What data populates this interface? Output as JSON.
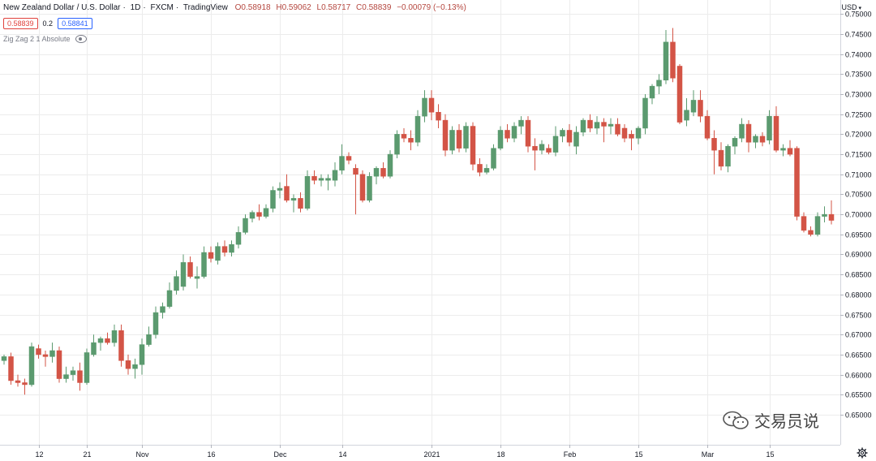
{
  "header": {
    "symbol": "New Zealand Dollar / U.S. Dollar",
    "interval": "1D",
    "exchange": "FXCM",
    "source": "TradingView",
    "open": "O0.58918",
    "high": "H0.59062",
    "low": "L0.58717",
    "close": "C0.58839",
    "change": "−0.00079 (−0.13%)"
  },
  "prices": {
    "sell": "0.58839",
    "spread": "0.2",
    "buy": "0.58841"
  },
  "indicator": {
    "label": "Zig Zag 2 1 Absolute",
    "eye_icon": "eye-icon"
  },
  "currency": "USD",
  "watermark": "交易员说",
  "colors": {
    "up": "#5b9a6f",
    "down": "#d35446",
    "grid": "#ececec",
    "axis_text": "#131722"
  },
  "chart_data": {
    "type": "candlestick",
    "ylim": [
      0.6425,
      0.7535
    ],
    "y_ticks": [
      "0.75000",
      "0.74500",
      "0.74000",
      "0.73500",
      "0.73000",
      "0.72500",
      "0.72000",
      "0.71500",
      "0.71000",
      "0.70500",
      "0.70000",
      "0.69500",
      "0.69000",
      "0.68500",
      "0.68000",
      "0.67500",
      "0.67000",
      "0.66500",
      "0.66000",
      "0.65500",
      "0.65000"
    ],
    "x_ticks": [
      {
        "label": "12",
        "index": 5
      },
      {
        "label": "21",
        "index": 12
      },
      {
        "label": "Nov",
        "index": 20
      },
      {
        "label": "16",
        "index": 30
      },
      {
        "label": "Dec",
        "index": 40
      },
      {
        "label": "14",
        "index": 49
      },
      {
        "label": "2021",
        "index": 62
      },
      {
        "label": "18",
        "index": 72
      },
      {
        "label": "Feb",
        "index": 82
      },
      {
        "label": "15",
        "index": 92
      },
      {
        "label": "Mar",
        "index": 102
      },
      {
        "label": "15",
        "index": 111
      }
    ],
    "candles": [
      {
        "o": 0.6635,
        "h": 0.665,
        "l": 0.6625,
        "c": 0.6645
      },
      {
        "o": 0.6645,
        "h": 0.6655,
        "l": 0.6575,
        "c": 0.6585
      },
      {
        "o": 0.6585,
        "h": 0.66,
        "l": 0.657,
        "c": 0.658
      },
      {
        "o": 0.658,
        "h": 0.659,
        "l": 0.655,
        "c": 0.6575
      },
      {
        "o": 0.6575,
        "h": 0.668,
        "l": 0.657,
        "c": 0.667
      },
      {
        "o": 0.6665,
        "h": 0.6675,
        "l": 0.664,
        "c": 0.665
      },
      {
        "o": 0.665,
        "h": 0.666,
        "l": 0.662,
        "c": 0.6645
      },
      {
        "o": 0.6645,
        "h": 0.668,
        "l": 0.663,
        "c": 0.666
      },
      {
        "o": 0.666,
        "h": 0.667,
        "l": 0.658,
        "c": 0.659
      },
      {
        "o": 0.659,
        "h": 0.662,
        "l": 0.658,
        "c": 0.66
      },
      {
        "o": 0.66,
        "h": 0.662,
        "l": 0.6585,
        "c": 0.661
      },
      {
        "o": 0.661,
        "h": 0.663,
        "l": 0.656,
        "c": 0.658
      },
      {
        "o": 0.658,
        "h": 0.6665,
        "l": 0.6575,
        "c": 0.6655
      },
      {
        "o": 0.665,
        "h": 0.67,
        "l": 0.6645,
        "c": 0.668
      },
      {
        "o": 0.668,
        "h": 0.6695,
        "l": 0.666,
        "c": 0.669
      },
      {
        "o": 0.669,
        "h": 0.6705,
        "l": 0.6675,
        "c": 0.668
      },
      {
        "o": 0.668,
        "h": 0.6725,
        "l": 0.667,
        "c": 0.671
      },
      {
        "o": 0.671,
        "h": 0.6725,
        "l": 0.662,
        "c": 0.6635
      },
      {
        "o": 0.6635,
        "h": 0.665,
        "l": 0.66,
        "c": 0.6615
      },
      {
        "o": 0.6615,
        "h": 0.664,
        "l": 0.659,
        "c": 0.6625
      },
      {
        "o": 0.6625,
        "h": 0.669,
        "l": 0.66,
        "c": 0.6675
      },
      {
        "o": 0.6675,
        "h": 0.672,
        "l": 0.667,
        "c": 0.67
      },
      {
        "o": 0.67,
        "h": 0.677,
        "l": 0.669,
        "c": 0.6755
      },
      {
        "o": 0.6755,
        "h": 0.678,
        "l": 0.674,
        "c": 0.677
      },
      {
        "o": 0.677,
        "h": 0.683,
        "l": 0.6765,
        "c": 0.681
      },
      {
        "o": 0.681,
        "h": 0.686,
        "l": 0.68,
        "c": 0.6845
      },
      {
        "o": 0.682,
        "h": 0.69,
        "l": 0.681,
        "c": 0.688
      },
      {
        "o": 0.688,
        "h": 0.6895,
        "l": 0.684,
        "c": 0.6845
      },
      {
        "o": 0.684,
        "h": 0.687,
        "l": 0.6815,
        "c": 0.6845
      },
      {
        "o": 0.6845,
        "h": 0.692,
        "l": 0.684,
        "c": 0.6905
      },
      {
        "o": 0.6905,
        "h": 0.692,
        "l": 0.688,
        "c": 0.689
      },
      {
        "o": 0.6885,
        "h": 0.693,
        "l": 0.6875,
        "c": 0.692
      },
      {
        "o": 0.692,
        "h": 0.6935,
        "l": 0.6895,
        "c": 0.6905
      },
      {
        "o": 0.6905,
        "h": 0.6935,
        "l": 0.6895,
        "c": 0.6925
      },
      {
        "o": 0.6925,
        "h": 0.697,
        "l": 0.6915,
        "c": 0.6955
      },
      {
        "o": 0.6955,
        "h": 0.7,
        "l": 0.695,
        "c": 0.699
      },
      {
        "o": 0.699,
        "h": 0.701,
        "l": 0.698,
        "c": 0.7005
      },
      {
        "o": 0.7005,
        "h": 0.7025,
        "l": 0.6985,
        "c": 0.6995
      },
      {
        "o": 0.6995,
        "h": 0.7025,
        "l": 0.699,
        "c": 0.7015
      },
      {
        "o": 0.7015,
        "h": 0.707,
        "l": 0.7005,
        "c": 0.706
      },
      {
        "o": 0.706,
        "h": 0.708,
        "l": 0.704,
        "c": 0.7065
      },
      {
        "o": 0.707,
        "h": 0.71,
        "l": 0.703,
        "c": 0.7035
      },
      {
        "o": 0.7035,
        "h": 0.705,
        "l": 0.7005,
        "c": 0.704
      },
      {
        "o": 0.704,
        "h": 0.7055,
        "l": 0.7005,
        "c": 0.7015
      },
      {
        "o": 0.7015,
        "h": 0.711,
        "l": 0.701,
        "c": 0.7095
      },
      {
        "o": 0.7095,
        "h": 0.711,
        "l": 0.7075,
        "c": 0.7085
      },
      {
        "o": 0.7085,
        "h": 0.71,
        "l": 0.707,
        "c": 0.709
      },
      {
        "o": 0.7085,
        "h": 0.71,
        "l": 0.706,
        "c": 0.709
      },
      {
        "o": 0.7085,
        "h": 0.713,
        "l": 0.707,
        "c": 0.711
      },
      {
        "o": 0.711,
        "h": 0.7175,
        "l": 0.71,
        "c": 0.7145
      },
      {
        "o": 0.7145,
        "h": 0.7155,
        "l": 0.7125,
        "c": 0.7135
      },
      {
        "o": 0.7115,
        "h": 0.7125,
        "l": 0.7,
        "c": 0.71
      },
      {
        "o": 0.71,
        "h": 0.711,
        "l": 0.703,
        "c": 0.7035
      },
      {
        "o": 0.7035,
        "h": 0.7105,
        "l": 0.703,
        "c": 0.7095
      },
      {
        "o": 0.7095,
        "h": 0.712,
        "l": 0.7075,
        "c": 0.7115
      },
      {
        "o": 0.7115,
        "h": 0.713,
        "l": 0.709,
        "c": 0.7095
      },
      {
        "o": 0.7095,
        "h": 0.716,
        "l": 0.709,
        "c": 0.715
      },
      {
        "o": 0.715,
        "h": 0.721,
        "l": 0.714,
        "c": 0.72
      },
      {
        "o": 0.72,
        "h": 0.7215,
        "l": 0.718,
        "c": 0.719
      },
      {
        "o": 0.719,
        "h": 0.721,
        "l": 0.716,
        "c": 0.718
      },
      {
        "o": 0.718,
        "h": 0.726,
        "l": 0.717,
        "c": 0.7245
      },
      {
        "o": 0.7245,
        "h": 0.731,
        "l": 0.723,
        "c": 0.729
      },
      {
        "o": 0.729,
        "h": 0.731,
        "l": 0.7235,
        "c": 0.7255
      },
      {
        "o": 0.7255,
        "h": 0.7275,
        "l": 0.7215,
        "c": 0.7235
      },
      {
        "o": 0.7235,
        "h": 0.725,
        "l": 0.7145,
        "c": 0.716
      },
      {
        "o": 0.716,
        "h": 0.722,
        "l": 0.715,
        "c": 0.721
      },
      {
        "o": 0.721,
        "h": 0.7225,
        "l": 0.7155,
        "c": 0.7165
      },
      {
        "o": 0.7165,
        "h": 0.723,
        "l": 0.7155,
        "c": 0.722
      },
      {
        "o": 0.722,
        "h": 0.723,
        "l": 0.711,
        "c": 0.7125
      },
      {
        "o": 0.7125,
        "h": 0.714,
        "l": 0.7095,
        "c": 0.7105
      },
      {
        "o": 0.7105,
        "h": 0.7125,
        "l": 0.71,
        "c": 0.7115
      },
      {
        "o": 0.7115,
        "h": 0.7175,
        "l": 0.711,
        "c": 0.7165
      },
      {
        "o": 0.7165,
        "h": 0.722,
        "l": 0.716,
        "c": 0.721
      },
      {
        "o": 0.721,
        "h": 0.7225,
        "l": 0.718,
        "c": 0.719
      },
      {
        "o": 0.719,
        "h": 0.723,
        "l": 0.718,
        "c": 0.722
      },
      {
        "o": 0.722,
        "h": 0.7245,
        "l": 0.72,
        "c": 0.7235
      },
      {
        "o": 0.7235,
        "h": 0.7245,
        "l": 0.7155,
        "c": 0.717
      },
      {
        "o": 0.717,
        "h": 0.719,
        "l": 0.711,
        "c": 0.716
      },
      {
        "o": 0.716,
        "h": 0.7185,
        "l": 0.715,
        "c": 0.7175
      },
      {
        "o": 0.7165,
        "h": 0.7175,
        "l": 0.715,
        "c": 0.7155
      },
      {
        "o": 0.7155,
        "h": 0.722,
        "l": 0.7145,
        "c": 0.7195
      },
      {
        "o": 0.7195,
        "h": 0.7215,
        "l": 0.718,
        "c": 0.721
      },
      {
        "o": 0.721,
        "h": 0.7225,
        "l": 0.717,
        "c": 0.718
      },
      {
        "o": 0.717,
        "h": 0.722,
        "l": 0.715,
        "c": 0.7205
      },
      {
        "o": 0.7205,
        "h": 0.724,
        "l": 0.7195,
        "c": 0.7235
      },
      {
        "o": 0.7235,
        "h": 0.725,
        "l": 0.7205,
        "c": 0.7215
      },
      {
        "o": 0.7215,
        "h": 0.7245,
        "l": 0.72,
        "c": 0.723
      },
      {
        "o": 0.723,
        "h": 0.724,
        "l": 0.718,
        "c": 0.722
      },
      {
        "o": 0.722,
        "h": 0.724,
        "l": 0.72,
        "c": 0.7225
      },
      {
        "o": 0.7225,
        "h": 0.724,
        "l": 0.7195,
        "c": 0.72
      },
      {
        "o": 0.7215,
        "h": 0.7225,
        "l": 0.718,
        "c": 0.719
      },
      {
        "o": 0.72,
        "h": 0.721,
        "l": 0.716,
        "c": 0.719
      },
      {
        "o": 0.719,
        "h": 0.722,
        "l": 0.7175,
        "c": 0.7215
      },
      {
        "o": 0.7215,
        "h": 0.73,
        "l": 0.72,
        "c": 0.729
      },
      {
        "o": 0.729,
        "h": 0.7325,
        "l": 0.7275,
        "c": 0.732
      },
      {
        "o": 0.732,
        "h": 0.735,
        "l": 0.73,
        "c": 0.7335
      },
      {
        "o": 0.7335,
        "h": 0.746,
        "l": 0.7325,
        "c": 0.743
      },
      {
        "o": 0.743,
        "h": 0.7465,
        "l": 0.733,
        "c": 0.734
      },
      {
        "o": 0.737,
        "h": 0.7375,
        "l": 0.7225,
        "c": 0.723
      },
      {
        "o": 0.7235,
        "h": 0.729,
        "l": 0.722,
        "c": 0.726
      },
      {
        "o": 0.7255,
        "h": 0.731,
        "l": 0.7245,
        "c": 0.7285
      },
      {
        "o": 0.7285,
        "h": 0.731,
        "l": 0.723,
        "c": 0.7245
      },
      {
        "o": 0.7245,
        "h": 0.726,
        "l": 0.7185,
        "c": 0.719
      },
      {
        "o": 0.719,
        "h": 0.721,
        "l": 0.71,
        "c": 0.716
      },
      {
        "o": 0.716,
        "h": 0.718,
        "l": 0.711,
        "c": 0.712
      },
      {
        "o": 0.712,
        "h": 0.7175,
        "l": 0.7105,
        "c": 0.717
      },
      {
        "o": 0.717,
        "h": 0.7195,
        "l": 0.715,
        "c": 0.719
      },
      {
        "o": 0.719,
        "h": 0.724,
        "l": 0.718,
        "c": 0.7225
      },
      {
        "o": 0.7225,
        "h": 0.7235,
        "l": 0.7155,
        "c": 0.718
      },
      {
        "o": 0.718,
        "h": 0.72,
        "l": 0.7165,
        "c": 0.7195
      },
      {
        "o": 0.7195,
        "h": 0.7205,
        "l": 0.717,
        "c": 0.718
      },
      {
        "o": 0.7185,
        "h": 0.726,
        "l": 0.7175,
        "c": 0.7245
      },
      {
        "o": 0.7245,
        "h": 0.727,
        "l": 0.7155,
        "c": 0.716
      },
      {
        "o": 0.716,
        "h": 0.7175,
        "l": 0.7145,
        "c": 0.7165
      },
      {
        "o": 0.7165,
        "h": 0.7185,
        "l": 0.7145,
        "c": 0.715
      },
      {
        "o": 0.7165,
        "h": 0.717,
        "l": 0.6985,
        "c": 0.6995
      },
      {
        "o": 0.6995,
        "h": 0.7005,
        "l": 0.6955,
        "c": 0.696
      },
      {
        "o": 0.696,
        "h": 0.697,
        "l": 0.6945,
        "c": 0.695
      },
      {
        "o": 0.695,
        "h": 0.7005,
        "l": 0.6945,
        "c": 0.6995
      },
      {
        "o": 0.6995,
        "h": 0.702,
        "l": 0.698,
        "c": 0.7
      },
      {
        "o": 0.7,
        "h": 0.7035,
        "l": 0.6975,
        "c": 0.6985
      }
    ]
  }
}
